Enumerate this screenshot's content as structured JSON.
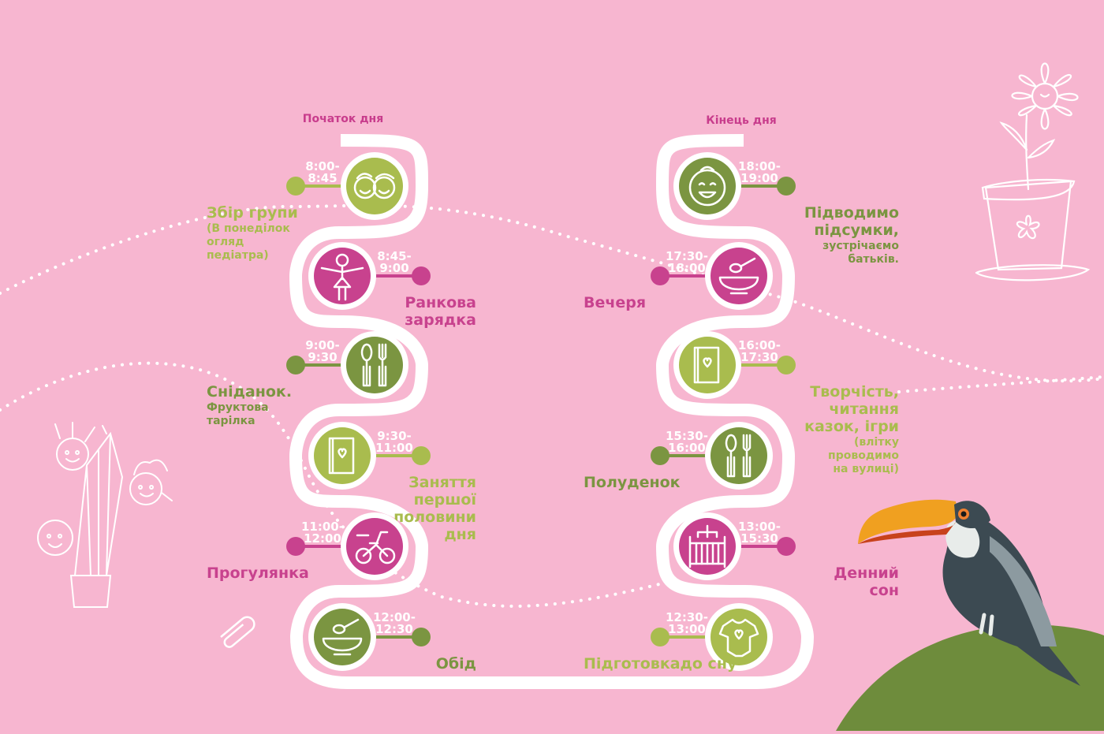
{
  "colors": {
    "background": "#f7b6d0",
    "lime": "#a9bc4e",
    "olive": "#7b9541",
    "magenta": "#c8428e",
    "path": "#ffffff",
    "hill": "#6e8c3c"
  },
  "headings": {
    "start": "Початок дня",
    "end": "Кінець дня"
  },
  "schedule": [
    {
      "id": "gathering",
      "time": [
        "8:00-",
        "8:45"
      ],
      "title": [
        "Збір групи"
      ],
      "note": [
        "(В понеділок",
        "огляд",
        "педіатра)"
      ],
      "color": "lime",
      "icon": "children-faces-icon"
    },
    {
      "id": "exercise",
      "time": [
        "8:45-",
        "9:00"
      ],
      "title": [
        "Ранкова",
        "зарядка"
      ],
      "note": [],
      "color": "magenta",
      "icon": "girl-exercising-icon"
    },
    {
      "id": "breakfast",
      "time": [
        "9:00-",
        "9:30"
      ],
      "title": [
        "Сніданок."
      ],
      "note": [
        "Фруктова",
        "тарілка"
      ],
      "color": "olive",
      "icon": "cutlery-icon"
    },
    {
      "id": "first-lessons",
      "time": [
        "9:30-",
        "11:00"
      ],
      "title": [
        "Заняття",
        "першої",
        "половини",
        "дня"
      ],
      "note": [],
      "color": "lime",
      "icon": "book-icon"
    },
    {
      "id": "walk",
      "time": [
        "11:00-",
        "12:00"
      ],
      "title": [
        "Прогулянка"
      ],
      "note": [],
      "color": "magenta",
      "icon": "tricycle-icon"
    },
    {
      "id": "lunch",
      "time": [
        "12:00-",
        "12:30"
      ],
      "title": [
        "Обід"
      ],
      "note": [],
      "color": "olive",
      "icon": "bowl-icon"
    },
    {
      "id": "bedtime-prep",
      "time": [
        "12:30-",
        "13:00"
      ],
      "title": [
        "Підготовкадо сну"
      ],
      "note": [],
      "color": "lime",
      "icon": "baby-bodysuit-icon"
    },
    {
      "id": "nap",
      "time": [
        "13:00-",
        "15:30"
      ],
      "title": [
        "Денний",
        "сон"
      ],
      "note": [],
      "color": "magenta",
      "icon": "crib-icon"
    },
    {
      "id": "snack",
      "time": [
        "15:30-",
        "16:00"
      ],
      "title": [
        "Полуденок"
      ],
      "note": [],
      "color": "olive",
      "icon": "cutlery-icon"
    },
    {
      "id": "creativity",
      "time": [
        "16:00-",
        "17:30"
      ],
      "title": [
        "Творчість,",
        "читання",
        "казок, ігри"
      ],
      "note": [
        "(влітку",
        "проводимо",
        "на вулиці)"
      ],
      "color": "lime",
      "icon": "book-icon"
    },
    {
      "id": "dinner",
      "time": [
        "17:30-",
        "18:00"
      ],
      "title": [
        "Вечеря"
      ],
      "note": [],
      "color": "magenta",
      "icon": "bowl-icon"
    },
    {
      "id": "summary",
      "time": [
        "18:00-",
        "19:00"
      ],
      "title": [
        "Підводимо",
        "підсумки,"
      ],
      "note": [
        "зустрічаємо",
        "батьків."
      ],
      "color": "olive",
      "icon": "baby-face-icon"
    }
  ],
  "decorations": [
    "flower-pot-icon",
    "pencil-kids-icon",
    "paperclip-icon",
    "toucan-icon"
  ]
}
